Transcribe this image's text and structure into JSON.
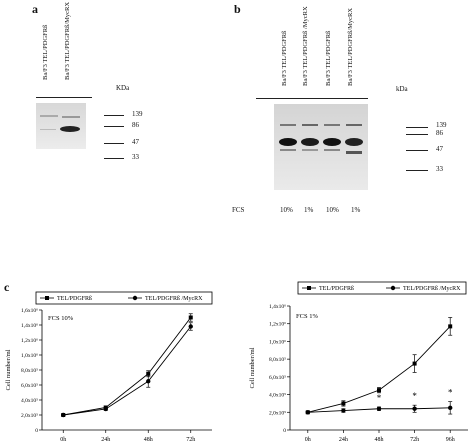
{
  "panel_a": {
    "letter": "a",
    "lanes": [
      "Ba/F3 TEL/PDGFRß",
      "Ba/F3 TEL/PDGFRß/MycRX"
    ],
    "kda_label": "KDa",
    "markers": [
      "139",
      "86",
      "47",
      "33"
    ]
  },
  "panel_b": {
    "letter": "b",
    "lanes": [
      "Ba/F3 TEL/PDGFRß",
      "Ba/F3 TEL/PDGFRß /MycRX",
      "Ba/F3 TEL/PDGFRß",
      "Ba/F3 TEL/PDGFRß/MycRX"
    ],
    "kda_label": "kDa",
    "markers": [
      "139",
      "86",
      "47",
      "33"
    ],
    "fcs_label": "FCS",
    "fcs_values": [
      "10%",
      "1%",
      "10%",
      "1%"
    ]
  },
  "panel_c": {
    "letter": "c"
  },
  "chart_data": [
    {
      "type": "line",
      "title": "",
      "annotation": "FCS 10%",
      "ylabel": "Cell number/ml",
      "xlabel": "",
      "categories": [
        "0h",
        "24h",
        "48h",
        "72h"
      ],
      "ylim": [
        0,
        1.6
      ],
      "yticks": [
        "0",
        "2,0x10⁵",
        "4,0x10⁵",
        "6,0x10⁵",
        "8,0x10⁵",
        "1,0x10⁶",
        "1,2x10⁶",
        "1,4x10⁶",
        "1,6x10⁶"
      ],
      "legend": "top",
      "series": [
        {
          "name": "TEL/PDGFRß",
          "marker": "square",
          "values": [
            0.2,
            0.3,
            0.75,
            1.5
          ],
          "errors": [
            0.01,
            0.02,
            0.04,
            0.05
          ]
        },
        {
          "name": "TEL/PDGFRß /MycRX",
          "marker": "circle",
          "values": [
            0.2,
            0.28,
            0.65,
            1.38
          ],
          "errors": [
            0.01,
            0.02,
            0.08,
            0.05
          ]
        }
      ]
    },
    {
      "type": "line",
      "title": "",
      "annotation": "FCS 1%",
      "ylabel": "Cell number/ml",
      "xlabel": "",
      "categories": [
        "0h",
        "24h",
        "48h",
        "72h",
        "96h"
      ],
      "ylim": [
        0,
        1.4
      ],
      "yticks": [
        "0",
        "2,0x10⁵",
        "4,0x10⁵",
        "6,0x10⁵",
        "8,0x10⁵",
        "1,0x10⁶",
        "1,2x10⁶",
        "1,4x10⁶"
      ],
      "legend": "top",
      "significance_marks": [
        "*",
        "*",
        "*"
      ],
      "series": [
        {
          "name": "TEL/PDGFRß",
          "marker": "square",
          "values": [
            0.2,
            0.3,
            0.45,
            0.75,
            1.17
          ],
          "errors": [
            0.01,
            0.03,
            0.03,
            0.1,
            0.1
          ]
        },
        {
          "name": "TEL/PDGFRß /MycRX",
          "marker": "circle",
          "values": [
            0.2,
            0.22,
            0.24,
            0.24,
            0.25
          ],
          "errors": [
            0.01,
            0.02,
            0.02,
            0.04,
            0.07
          ]
        }
      ]
    }
  ]
}
